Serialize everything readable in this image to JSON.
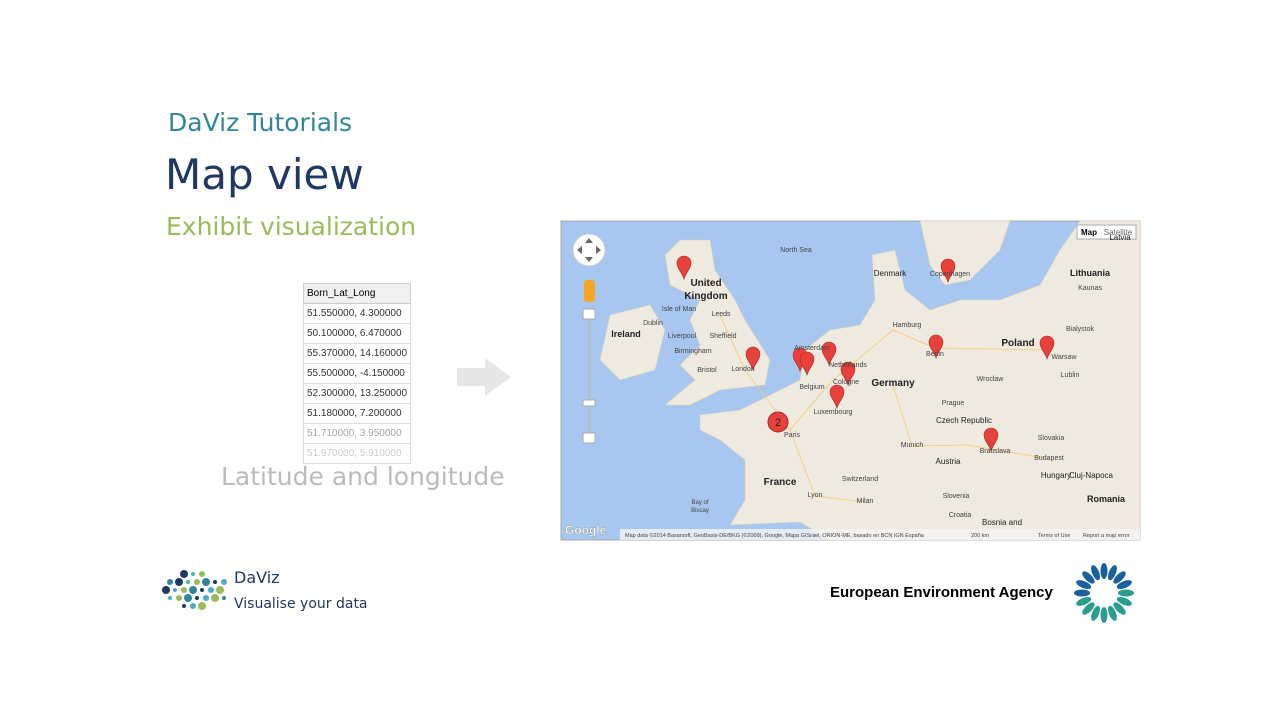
{
  "header": {
    "kicker": "DaViz Tutorials",
    "title": "Map view",
    "subtitle": "Exhibit visualization"
  },
  "table": {
    "header": "Born_Lat_Long",
    "rows": [
      "51.550000, 4.300000",
      "50.100000, 6.470000",
      "55.370000, 14.160000",
      "55.500000, -4.150000",
      "52.300000, 13.250000",
      "51.180000, 7.200000",
      "51.710000, 3.950000",
      "51.970000, 5.910000"
    ]
  },
  "overlay_label": "Latitude and longitude",
  "map": {
    "controls": [
      "Map",
      "Satellite"
    ],
    "cluster_label": "2",
    "labels": [
      "North Sea",
      "Denmark",
      "Copenhagen",
      "Latvia",
      "Lithuania",
      "Kaunas",
      "United",
      "Kingdom",
      "Isle of Man",
      "Leeds",
      "Dublin",
      "Ireland",
      "Liverpool",
      "Sheffield",
      "Birmingham",
      "Bristol",
      "London",
      "Amsterdam",
      "Netherlands",
      "Belgium",
      "Cologne",
      "Luxembourg",
      "Hamburg",
      "Berlin",
      "Germany",
      "Poland",
      "Warsaw",
      "Bialystok",
      "Lublin",
      "Wroclaw",
      "Prague",
      "Czech Republic",
      "Slovakia",
      "Bratislava",
      "Munich",
      "Austria",
      "Budapest",
      "Hungary",
      "Cluj-Napoca",
      "Romania",
      "Paris",
      "France",
      "Switzerland",
      "Lyon",
      "Milan",
      "Slovenia",
      "Croatia",
      "Bosnia and",
      "Bay of",
      "Biscay"
    ],
    "google": "Google",
    "attribution": "Map data ©2014 Basarsoft, GeoBasis-DE/BKG (©2009), Google, Mapa GISrael, ORION-ME, basado en BCN IGN España",
    "scale": "200 km",
    "terms": "Terms of Use",
    "report": "Report a map error"
  },
  "footer": {
    "daviz_name": "DaViz",
    "daviz_tagline": "Visualise your data",
    "eea": "European Environment Agency"
  }
}
